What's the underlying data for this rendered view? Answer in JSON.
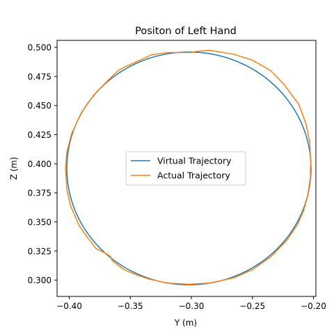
{
  "chart_data": {
    "type": "line",
    "title": "Positon of Left Hand",
    "xlabel": "Y (m)",
    "ylabel": "Z (m)",
    "xlim": [
      -0.41,
      -0.198
    ],
    "ylim": [
      0.286,
      0.506
    ],
    "xticks": [
      -0.4,
      -0.35,
      -0.3,
      -0.25,
      -0.2
    ],
    "xtick_labels": [
      "−0.40",
      "−0.35",
      "−0.30",
      "−0.25",
      "−0.20"
    ],
    "yticks": [
      0.3,
      0.325,
      0.35,
      0.375,
      0.4,
      0.425,
      0.45,
      0.475,
      0.5
    ],
    "ytick_labels": [
      "0.300",
      "0.325",
      "0.350",
      "0.375",
      "0.400",
      "0.425",
      "0.450",
      "0.475",
      "0.500"
    ],
    "grid": false,
    "legend_position": "center",
    "series": [
      {
        "name": "Virtual Trajectory",
        "color": "#1f77b4",
        "shape": "circle",
        "center": [
          -0.302,
          0.396
        ],
        "radius": [
          0.1,
          0.1
        ]
      },
      {
        "name": "Actual Trajectory",
        "color": "#ff7f0e",
        "points": [
          [
            -0.202,
            0.396
          ],
          [
            -0.203,
            0.418
          ],
          [
            -0.206,
            0.434
          ],
          [
            -0.212,
            0.451
          ],
          [
            -0.219,
            0.461
          ],
          [
            -0.224,
            0.468
          ],
          [
            -0.235,
            0.48
          ],
          [
            -0.25,
            0.489
          ],
          [
            -0.265,
            0.494
          ],
          [
            -0.285,
            0.4975
          ],
          [
            -0.296,
            0.4965
          ],
          [
            -0.3,
            0.4955
          ],
          [
            -0.32,
            0.4955
          ],
          [
            -0.333,
            0.4935
          ],
          [
            -0.34,
            0.49
          ],
          [
            -0.355,
            0.483
          ],
          [
            -0.36,
            0.48
          ],
          [
            -0.368,
            0.472
          ],
          [
            -0.38,
            0.459
          ],
          [
            -0.39,
            0.444
          ],
          [
            -0.398,
            0.426
          ],
          [
            -0.402,
            0.41
          ],
          [
            -0.403,
            0.396
          ],
          [
            -0.402,
            0.378
          ],
          [
            -0.399,
            0.364
          ],
          [
            -0.392,
            0.347
          ],
          [
            -0.386,
            0.338
          ],
          [
            -0.378,
            0.327
          ],
          [
            -0.37,
            0.323
          ],
          [
            -0.366,
            0.32
          ],
          [
            -0.365,
            0.317
          ],
          [
            -0.359,
            0.312
          ],
          [
            -0.355,
            0.309
          ],
          [
            -0.346,
            0.305
          ],
          [
            -0.335,
            0.301
          ],
          [
            -0.32,
            0.2975
          ],
          [
            -0.302,
            0.2965
          ],
          [
            -0.285,
            0.2975
          ],
          [
            -0.265,
            0.302
          ],
          [
            -0.25,
            0.309
          ],
          [
            -0.235,
            0.32
          ],
          [
            -0.222,
            0.334
          ],
          [
            -0.213,
            0.348
          ],
          [
            -0.208,
            0.36
          ],
          [
            -0.205,
            0.371
          ],
          [
            -0.2035,
            0.381
          ],
          [
            -0.2025,
            0.388
          ],
          [
            -0.2025,
            0.398
          ],
          [
            -0.202,
            0.396
          ]
        ]
      }
    ]
  }
}
